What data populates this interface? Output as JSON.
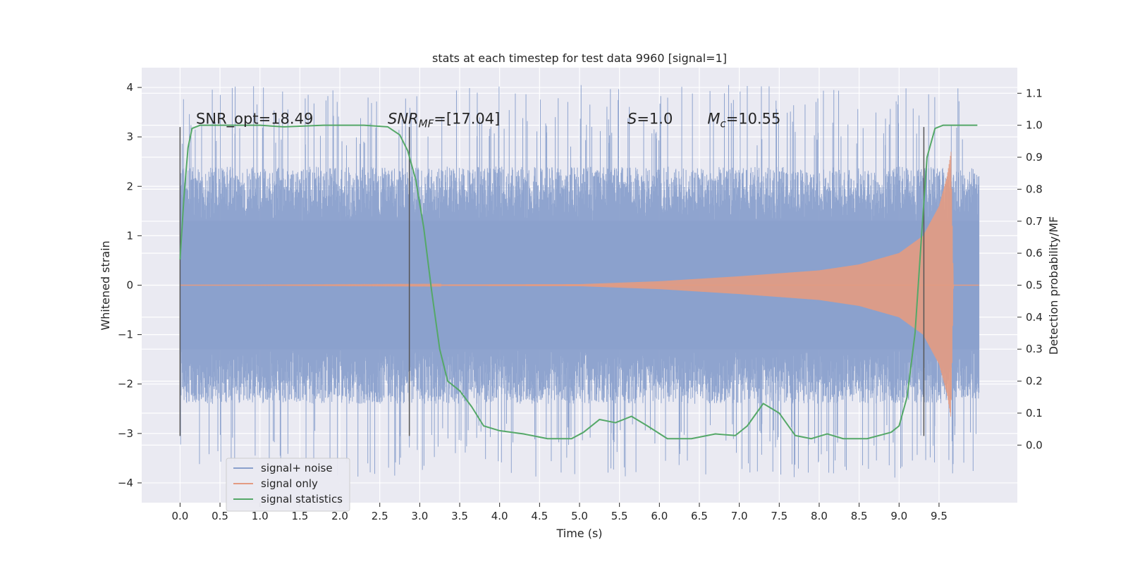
{
  "chart_data": {
    "type": "line",
    "title": "stats at each timestep for test data 9960 [signal=1]",
    "xlabel": "Time (s)",
    "ylabel": "Whitened strain",
    "y2label": "Detection probability/MF",
    "xlim": [
      -0.48,
      10.48
    ],
    "ylim": [
      -4.4,
      4.4
    ],
    "y2lim": [
      -0.18,
      1.18
    ],
    "xticks": [
      0.0,
      0.5,
      1.0,
      1.5,
      2.0,
      2.5,
      3.0,
      3.5,
      4.0,
      4.5,
      5.0,
      5.5,
      6.0,
      6.5,
      7.0,
      7.5,
      8.0,
      8.5,
      9.0,
      9.5
    ],
    "xtick_labels": [
      "0.0",
      "0.5",
      "1.0",
      "1.5",
      "2.0",
      "2.5",
      "3.0",
      "3.5",
      "4.0",
      "4.5",
      "5.0",
      "5.5",
      "6.0",
      "6.5",
      "7.0",
      "7.5",
      "8.0",
      "8.5",
      "9.0",
      "9.5"
    ],
    "yticks": [
      4,
      3,
      2,
      1,
      0,
      -1,
      -2,
      -3,
      -4
    ],
    "ytick_labels": [
      "4",
      "3",
      "2",
      "1",
      "0",
      "−1",
      "−2",
      "−3",
      "−4"
    ],
    "y2ticks": [
      1.1,
      1.0,
      0.9,
      0.8,
      0.7,
      0.6,
      0.5,
      0.4,
      0.3,
      0.2,
      0.1,
      0.0
    ],
    "y2tick_labels": [
      "1.1",
      "1.0",
      "0.9",
      "0.8",
      "0.7",
      "0.6",
      "0.5",
      "0.4",
      "0.3",
      "0.2",
      "0.1",
      "0.0"
    ],
    "grid": true,
    "legend_position": "lower-left",
    "annotations": [
      {
        "text": "SNR_opt=18.49",
        "x": 0.2,
        "y2": 1.0
      },
      {
        "base": "SNR",
        "sub": "MF",
        "rest": "=[17.04]",
        "x": 2.6,
        "y2": 1.0
      },
      {
        "base": "S",
        "sub": "",
        "rest": "=1.0",
        "x": 5.6,
        "y2": 1.0
      },
      {
        "base": "M",
        "sub": "c",
        "rest": "=10.55",
        "x": 6.6,
        "y2": 1.0
      }
    ],
    "vertical_markers": [
      {
        "x": 0.0,
        "y": [
          -3.05,
          3.2
        ]
      },
      {
        "x": 2.87,
        "y": [
          -3.05,
          3.2
        ]
      },
      {
        "x": 9.31,
        "y": [
          -3.05,
          3.2
        ]
      }
    ],
    "series": [
      {
        "name": "signal+ noise",
        "axis": "left",
        "color": "#8aa0cc",
        "x_range": [
          0.0,
          10.0
        ],
        "envelope": {
          "core": 1.3,
          "typical_max": 2.8,
          "peak_max": 4.05,
          "peak_min": -3.9
        }
      },
      {
        "name": "signal only",
        "axis": "left",
        "color": "#e39b82",
        "x_range": [
          0.0,
          10.0
        ],
        "envelope_points": [
          [
            0.0,
            0.0
          ],
          [
            5.0,
            0.02
          ],
          [
            6.0,
            0.08
          ],
          [
            7.0,
            0.18
          ],
          [
            8.0,
            0.3
          ],
          [
            8.5,
            0.42
          ],
          [
            9.0,
            0.65
          ],
          [
            9.3,
            1.0
          ],
          [
            9.5,
            1.6
          ],
          [
            9.6,
            2.2
          ],
          [
            9.65,
            2.7
          ],
          [
            9.68,
            0.0
          ],
          [
            10.0,
            0.0
          ]
        ]
      },
      {
        "name": "signal statistics",
        "axis": "right",
        "color": "#55a868",
        "points": [
          [
            0.0,
            0.58
          ],
          [
            0.05,
            0.78
          ],
          [
            0.1,
            0.93
          ],
          [
            0.15,
            0.99
          ],
          [
            0.25,
            1.0
          ],
          [
            0.5,
            1.0
          ],
          [
            1.0,
            1.0
          ],
          [
            1.3,
            0.995
          ],
          [
            1.8,
            1.0
          ],
          [
            2.3,
            1.0
          ],
          [
            2.6,
            0.995
          ],
          [
            2.75,
            0.97
          ],
          [
            2.85,
            0.92
          ],
          [
            2.95,
            0.83
          ],
          [
            3.05,
            0.68
          ],
          [
            3.15,
            0.48
          ],
          [
            3.25,
            0.3
          ],
          [
            3.35,
            0.2
          ],
          [
            3.5,
            0.17
          ],
          [
            3.65,
            0.12
          ],
          [
            3.8,
            0.06
          ],
          [
            4.0,
            0.045
          ],
          [
            4.3,
            0.035
          ],
          [
            4.6,
            0.02
          ],
          [
            4.9,
            0.02
          ],
          [
            5.05,
            0.04
          ],
          [
            5.25,
            0.08
          ],
          [
            5.45,
            0.07
          ],
          [
            5.65,
            0.09
          ],
          [
            5.85,
            0.06
          ],
          [
            6.1,
            0.02
          ],
          [
            6.4,
            0.02
          ],
          [
            6.7,
            0.035
          ],
          [
            6.95,
            0.03
          ],
          [
            7.1,
            0.06
          ],
          [
            7.3,
            0.13
          ],
          [
            7.5,
            0.1
          ],
          [
            7.7,
            0.03
          ],
          [
            7.9,
            0.02
          ],
          [
            8.1,
            0.035
          ],
          [
            8.3,
            0.02
          ],
          [
            8.6,
            0.02
          ],
          [
            8.9,
            0.04
          ],
          [
            9.0,
            0.06
          ],
          [
            9.1,
            0.15
          ],
          [
            9.2,
            0.35
          ],
          [
            9.28,
            0.65
          ],
          [
            9.35,
            0.9
          ],
          [
            9.45,
            0.99
          ],
          [
            9.55,
            1.0
          ],
          [
            9.8,
            1.0
          ],
          [
            9.98,
            1.0
          ]
        ]
      }
    ]
  },
  "colors": {
    "plot_background": "#eaeaf2",
    "grid": "#ffffff",
    "noise": "#8aa0cc",
    "signal": "#e39b82",
    "stat": "#55a868",
    "marker": "#555555"
  }
}
